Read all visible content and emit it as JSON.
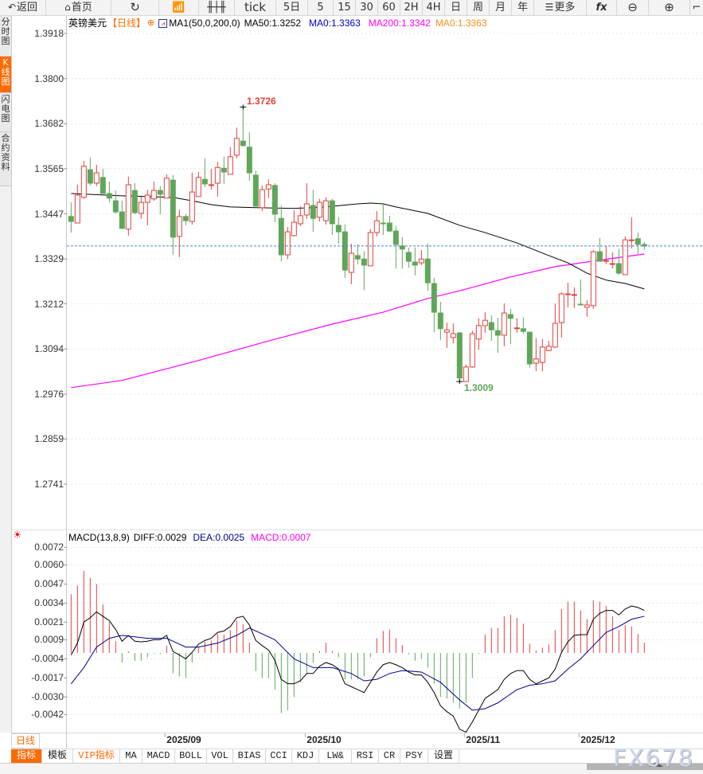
{
  "toolbar": {
    "back": "返回",
    "home": "首页",
    "tick": "tick",
    "five_day": "5日",
    "periods": [
      "5",
      "15",
      "30",
      "60",
      "2H",
      "4H",
      "日",
      "周",
      "月",
      "年"
    ],
    "more": "更多",
    "fx": "fx"
  },
  "sidebar": {
    "tabs": [
      "分时图",
      "K线图",
      "闪电图",
      "合约资料"
    ],
    "active": 1
  },
  "legend": {
    "symbol": "英镑美元",
    "period": "【日线】",
    "ma_params": "MA1(50,0,200,0)",
    "ma50": "MA50:1.3252",
    "ma0_blue": "MA0:1.3363",
    "ma200": "MA200:1.3342",
    "ma0_orange": "MA0:1.3363"
  },
  "colors": {
    "up": "#e0403c",
    "down": "#5fa65a",
    "ma50": "#000000",
    "ma200": "#ff00ff",
    "dea": "#00008b",
    "accent": "#ff6a00"
  },
  "price_axis": {
    "ticks": [
      "1.3918",
      "1.3800",
      "1.3682",
      "1.3565",
      "1.3447",
      "1.3329",
      "1.3212",
      "1.3094",
      "1.2976",
      "1.2859",
      "1.2741"
    ]
  },
  "markers": {
    "high": "1.3726",
    "low": "1.3009",
    "last_close": 1.3363
  },
  "chart_data": [
    {
      "type": "candlestick",
      "ylim": [
        1.2741,
        1.3918
      ],
      "ohlc": [
        [
          1.344,
          1.3477,
          1.3398,
          1.3427
        ],
        [
          1.3423,
          1.3523,
          1.3423,
          1.3496
        ],
        [
          1.349,
          1.3585,
          1.3486,
          1.3571
        ],
        [
          1.3562,
          1.3594,
          1.3521,
          1.3527
        ],
        [
          1.3527,
          1.3575,
          1.3519,
          1.3554
        ],
        [
          1.3542,
          1.3564,
          1.35,
          1.35
        ],
        [
          1.35,
          1.3531,
          1.3477,
          1.3488
        ],
        [
          1.3481,
          1.3508,
          1.3448,
          1.3452
        ],
        [
          1.3452,
          1.3481,
          1.3407,
          1.3409
        ],
        [
          1.3407,
          1.3544,
          1.339,
          1.3523
        ],
        [
          1.3508,
          1.3527,
          1.3446,
          1.345
        ],
        [
          1.3448,
          1.3492,
          1.3434,
          1.3477
        ],
        [
          1.3477,
          1.351,
          1.3417,
          1.3496
        ],
        [
          1.3486,
          1.3531,
          1.3481,
          1.3508
        ],
        [
          1.3508,
          1.3519,
          1.3446,
          1.3498
        ],
        [
          1.3488,
          1.355,
          1.3488,
          1.354
        ],
        [
          1.3535,
          1.3548,
          1.334,
          1.3386
        ],
        [
          1.3388,
          1.3458,
          1.3334,
          1.344
        ],
        [
          1.344,
          1.3446,
          1.3417,
          1.3429
        ],
        [
          1.3427,
          1.3554,
          1.3419,
          1.3504
        ],
        [
          1.3492,
          1.3556,
          1.3492,
          1.3542
        ],
        [
          1.3537,
          1.3592,
          1.3517,
          1.3525
        ],
        [
          1.3521,
          1.3564,
          1.351,
          1.3523
        ],
        [
          1.3527,
          1.3583,
          1.3492,
          1.3568
        ],
        [
          1.3566,
          1.3596,
          1.3525,
          1.3556
        ],
        [
          1.355,
          1.3621,
          1.355,
          1.3596
        ],
        [
          1.36,
          1.3672,
          1.3592,
          1.3644
        ],
        [
          1.3637,
          1.3726,
          1.3623,
          1.3625
        ],
        [
          1.3621,
          1.366,
          1.3533,
          1.3554
        ],
        [
          1.3548,
          1.356,
          1.3467,
          1.3467
        ],
        [
          1.3463,
          1.3521,
          1.3454,
          1.351
        ],
        [
          1.3512,
          1.3537,
          1.3488,
          1.3523
        ],
        [
          1.3521,
          1.3527,
          1.3425,
          1.3446
        ],
        [
          1.3435,
          1.3469,
          1.3323,
          1.334
        ],
        [
          1.334,
          1.3413,
          1.3329,
          1.34
        ],
        [
          1.339,
          1.3456,
          1.3388,
          1.3425
        ],
        [
          1.3421,
          1.3467,
          1.3415,
          1.3442
        ],
        [
          1.3444,
          1.3527,
          1.3434,
          1.3473
        ],
        [
          1.3469,
          1.351,
          1.34,
          1.3435
        ],
        [
          1.3438,
          1.3486,
          1.3427,
          1.3477
        ],
        [
          1.3429,
          1.349,
          1.3419,
          1.3481
        ],
        [
          1.3481,
          1.3486,
          1.3392,
          1.3421
        ],
        [
          1.3417,
          1.3438,
          1.3369,
          1.34
        ],
        [
          1.34,
          1.3419,
          1.328,
          1.33
        ],
        [
          1.3294,
          1.3369,
          1.3263,
          1.3344
        ],
        [
          1.3338,
          1.3367,
          1.3315,
          1.3329
        ],
        [
          1.3329,
          1.335,
          1.3248,
          1.3313
        ],
        [
          1.3311,
          1.3407,
          1.3311,
          1.3398
        ],
        [
          1.3398,
          1.3454,
          1.3388,
          1.3429
        ],
        [
          1.3423,
          1.3473,
          1.3392,
          1.3421
        ],
        [
          1.3423,
          1.3442,
          1.34,
          1.3402
        ],
        [
          1.3402,
          1.3415,
          1.3304,
          1.3367
        ],
        [
          1.3363,
          1.3386,
          1.3304,
          1.3355
        ],
        [
          1.3346,
          1.3359,
          1.3306,
          1.3323
        ],
        [
          1.3321,
          1.3359,
          1.3286,
          1.3313
        ],
        [
          1.3319,
          1.3352,
          1.3313,
          1.3329
        ],
        [
          1.3329,
          1.3369,
          1.3246,
          1.3267
        ],
        [
          1.3265,
          1.328,
          1.3138,
          1.319
        ],
        [
          1.3188,
          1.3217,
          1.3117,
          1.3147
        ],
        [
          1.3138,
          1.3163,
          1.3097,
          1.3144
        ],
        [
          1.3124,
          1.3161,
          1.3109,
          1.3134
        ],
        [
          1.3136,
          1.3138,
          1.3009,
          1.3018
        ],
        [
          1.3009,
          1.3053,
          1.3009,
          1.3047
        ],
        [
          1.3047,
          1.3142,
          1.3045,
          1.3134
        ],
        [
          1.312,
          1.3174,
          1.3092,
          1.3155
        ],
        [
          1.3155,
          1.319,
          1.3136,
          1.3169
        ],
        [
          1.3163,
          1.3182,
          1.3115,
          1.3144
        ],
        [
          1.3142,
          1.3176,
          1.3084,
          1.313
        ],
        [
          1.313,
          1.3213,
          1.3101,
          1.3188
        ],
        [
          1.3184,
          1.3199,
          1.3107,
          1.3174
        ],
        [
          1.3149,
          1.3174,
          1.3136,
          1.3149
        ],
        [
          1.3147,
          1.3176,
          1.3134,
          1.314
        ],
        [
          1.3138,
          1.3138,
          1.3045,
          1.3055
        ],
        [
          1.3057,
          1.3122,
          1.3036,
          1.3068
        ],
        [
          1.3059,
          1.312,
          1.3036,
          1.3099
        ],
        [
          1.309,
          1.3115,
          1.3088,
          1.3101
        ],
        [
          1.3099,
          1.3213,
          1.3097,
          1.3161
        ],
        [
          1.3163,
          1.3242,
          1.3124,
          1.3238
        ],
        [
          1.3236,
          1.3267,
          1.3203,
          1.3238
        ],
        [
          1.3234,
          1.3255,
          1.3201,
          1.3236
        ],
        [
          1.3211,
          1.3276,
          1.3209,
          1.3209
        ],
        [
          1.3203,
          1.3221,
          1.3178,
          1.3209
        ],
        [
          1.3207,
          1.3352,
          1.3199,
          1.3348
        ],
        [
          1.3348,
          1.3384,
          1.3323,
          1.3323
        ],
        [
          1.3323,
          1.3363,
          1.3315,
          1.3325
        ],
        [
          1.3315,
          1.3346,
          1.3304,
          1.3317
        ],
        [
          1.3317,
          1.3355,
          1.3288,
          1.3292
        ],
        [
          1.3288,
          1.3388,
          1.3288,
          1.3379
        ],
        [
          1.3377,
          1.3438,
          1.3357,
          1.3379
        ],
        [
          1.3382,
          1.3398,
          1.3342,
          1.3367
        ],
        [
          1.3367,
          1.3373,
          1.3353,
          1.3363
        ]
      ],
      "ma50": [
        [
          0,
          1.35
        ],
        [
          8,
          1.3494
        ],
        [
          16,
          1.349
        ],
        [
          19,
          1.3481
        ],
        [
          22,
          1.3471
        ],
        [
          25,
          1.3465
        ],
        [
          29,
          1.3463
        ],
        [
          35,
          1.3461
        ],
        [
          40,
          1.3465
        ],
        [
          45,
          1.3473
        ],
        [
          47,
          1.3475
        ],
        [
          49,
          1.3473
        ],
        [
          51,
          1.3465
        ],
        [
          56,
          1.3448
        ],
        [
          61,
          1.3417
        ],
        [
          65,
          1.3398
        ],
        [
          70,
          1.3371
        ],
        [
          75,
          1.3338
        ],
        [
          78,
          1.3319
        ],
        [
          81,
          1.3292
        ],
        [
          84,
          1.3274
        ],
        [
          87,
          1.3265
        ],
        [
          90,
          1.3251
        ]
      ],
      "ma200": [
        [
          0,
          1.2993
        ],
        [
          8,
          1.3012
        ],
        [
          20,
          1.3064
        ],
        [
          31,
          1.3115
        ],
        [
          41,
          1.3159
        ],
        [
          49,
          1.319
        ],
        [
          56,
          1.3226
        ],
        [
          61,
          1.3246
        ],
        [
          69,
          1.3282
        ],
        [
          76,
          1.3309
        ],
        [
          83,
          1.3326
        ],
        [
          90,
          1.3342
        ]
      ],
      "x_ticks": [
        {
          "index": 15,
          "label": "2025/09"
        },
        {
          "index": 37,
          "label": "2025/10"
        },
        {
          "index": 62,
          "label": "2025/11"
        },
        {
          "index": 80,
          "label": "2025/12"
        }
      ]
    },
    {
      "type": "bar+line",
      "title": "MACD(13,8,9)",
      "ylim": [
        -0.0042,
        0.0072
      ],
      "y_ticks": [
        "0.0072",
        "0.0060",
        "0.0047",
        "0.0034",
        "0.0021",
        "0.0009",
        "-0.0004",
        "-0.0017",
        "-0.0030",
        "-0.0042"
      ],
      "labels": {
        "diff": "DIFF:0.0029",
        "dea": "DEA:0.0025",
        "macd": "MACD:0.0007"
      },
      "macd": [
        0.004,
        0.0046,
        0.0056,
        0.0051,
        0.0047,
        0.0033,
        0.0021,
        0.0008,
        -0.00065,
        0.0001,
        -0.00054,
        -0.00054,
        -0.0003,
        -4e-05,
        -7e-05,
        0.0005,
        -0.0014,
        -0.0016,
        -0.0017,
        -0.00065,
        0.00043,
        0.00076,
        0.00083,
        0.0013,
        0.00125,
        0.00156,
        0.0022,
        0.00195,
        0.0007,
        -0.00123,
        -0.0017,
        -0.0017,
        -0.0025,
        -0.0041,
        -0.0039,
        -0.003,
        -0.002,
        -0.0014,
        -0.00065,
        0.00013,
        0.0007,
        0.00014,
        -0.0003,
        -0.0018,
        -0.0018,
        -0.0018,
        -0.0016,
        -0.0003,
        0.001,
        0.0015,
        0.0016,
        0.001,
        0.00054,
        -0.0001,
        -0.00054,
        -0.0004,
        -0.001,
        -0.0021,
        -0.003,
        -0.0031,
        -0.0034,
        -0.0038,
        -0.0034,
        -0.0017,
        -7e-05,
        0.00125,
        0.0017,
        0.0017,
        0.0025,
        0.0026,
        0.0024,
        0.002,
        0.00063,
        0.00016,
        0.00036,
        0.00058,
        0.00156,
        0.003,
        0.0035,
        0.0035,
        0.0029,
        0.0023,
        0.0036,
        0.0035,
        0.0032,
        0.0025,
        0.00156,
        0.0019,
        0.0018,
        0.0013,
        0.0007
      ],
      "diff": [
        -0.00014,
        0.00067,
        0.0021,
        0.0024,
        0.0028,
        0.0025,
        0.0022,
        0.0016,
        0.0008,
        0.0012,
        0.0008,
        0.00076,
        0.0008,
        0.0009,
        0.0009,
        0.0012,
        0.0001,
        -0.00014,
        -0.0004,
        4e-05,
        0.0006,
        0.00085,
        0.001,
        0.0014,
        0.0015,
        0.0018,
        0.0024,
        0.0025,
        0.0019,
        0.00085,
        0.0005,
        0.0002,
        -0.0005,
        -0.0018,
        -0.0021,
        -0.0021,
        -0.0019,
        -0.0014,
        -0.0014,
        -0.0009,
        -0.00065,
        -0.0008,
        -0.0011,
        -0.0021,
        -0.0023,
        -0.0025,
        -0.0027,
        -0.002,
        -0.0013,
        -0.0008,
        -0.00065,
        -0.0008,
        -0.001,
        -0.0013,
        -0.0015,
        -0.0015,
        -0.002,
        -0.0027,
        -0.0036,
        -0.004,
        -0.0043,
        -0.0052,
        -0.0054,
        -0.0047,
        -0.0039,
        -0.0031,
        -0.0028,
        -0.0025,
        -0.0018,
        -0.0014,
        -0.0012,
        -0.0012,
        -0.0018,
        -0.0021,
        -0.0019,
        -0.0017,
        -0.0011,
        4e-05,
        0.00076,
        0.0012,
        0.00125,
        0.00125,
        0.0023,
        0.0027,
        0.0029,
        0.0029,
        0.0026,
        0.003,
        0.0032,
        0.0031,
        0.0029
      ],
      "dea": [
        [
          0,
          -0.0021
        ],
        [
          2,
          -0.001
        ],
        [
          4,
          0.0004
        ],
        [
          6,
          0.001
        ],
        [
          8,
          0.0012
        ],
        [
          12,
          0.001
        ],
        [
          15,
          0.001
        ],
        [
          18,
          0.0004
        ],
        [
          20,
          0.0004
        ],
        [
          23,
          0.00067
        ],
        [
          26,
          0.0012
        ],
        [
          28,
          0.0017
        ],
        [
          32,
          0.0009
        ],
        [
          35,
          -0.0004
        ],
        [
          38,
          -0.001
        ],
        [
          41,
          -0.001
        ],
        [
          44,
          -0.0014
        ],
        [
          46,
          -0.0019
        ],
        [
          48,
          -0.0018
        ],
        [
          50,
          -0.0014
        ],
        [
          52,
          -0.0012
        ],
        [
          55,
          -0.0013
        ],
        [
          58,
          -0.002
        ],
        [
          61,
          -0.0032
        ],
        [
          63,
          -0.0039
        ],
        [
          65,
          -0.0038
        ],
        [
          67,
          -0.0034
        ],
        [
          70,
          -0.0025
        ],
        [
          72,
          -0.0022
        ],
        [
          74,
          -0.0021
        ],
        [
          76,
          -0.0019
        ],
        [
          78,
          -0.0011
        ],
        [
          80,
          -0.0004
        ],
        [
          82,
          0.0005
        ],
        [
          84,
          0.0014
        ],
        [
          86,
          0.0018
        ],
        [
          88,
          0.0023
        ],
        [
          90,
          0.0025
        ]
      ]
    }
  ],
  "bottom": {
    "period_button": "日线 ▲",
    "tabs": [
      "指标",
      "模板",
      "VIP指标",
      "MA",
      "MACD",
      "BOLL",
      "VOL",
      "BIAS",
      "CCI",
      "KDJ",
      "LW&",
      "RSI",
      "CR",
      "PSY",
      "设置"
    ],
    "watermark": "FX678"
  }
}
